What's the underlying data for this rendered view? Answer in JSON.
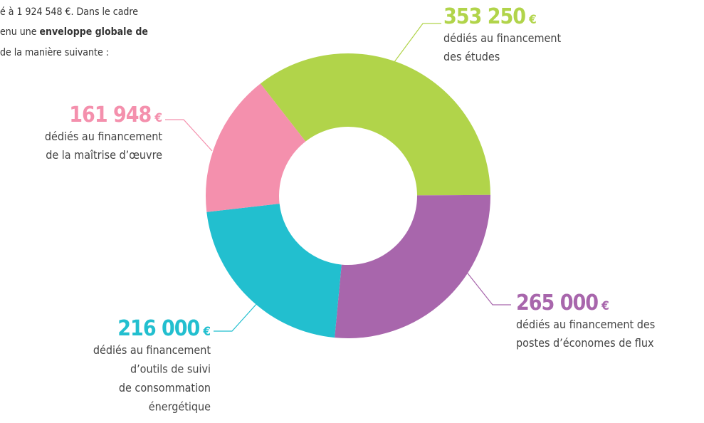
{
  "intro": {
    "line1": "é à 1 924 548 €. Dans le cadre",
    "line2a": "enu une ",
    "line2b": "enveloppe globale de",
    "line3": "de la manière suivante :"
  },
  "chart_data": {
    "type": "donut",
    "values": [
      353250,
      265000,
      216000,
      161948
    ],
    "value_labels": [
      "353 250",
      "265 000",
      "216 000",
      "161 948"
    ],
    "currency": "€",
    "colors": [
      "#b1d44a",
      "#a866ac",
      "#22bfcf",
      "#f490ad"
    ],
    "descriptions": [
      [
        "dédiés au financement",
        "des études"
      ],
      [
        "dédiés au financement des",
        "postes d’économes de flux"
      ],
      [
        "dédiés au financement",
        "d’outils de suivi",
        "de consommation",
        "énergétique"
      ],
      [
        "dédiés au financement",
        "de la maîtrise d’œuvre"
      ]
    ]
  }
}
